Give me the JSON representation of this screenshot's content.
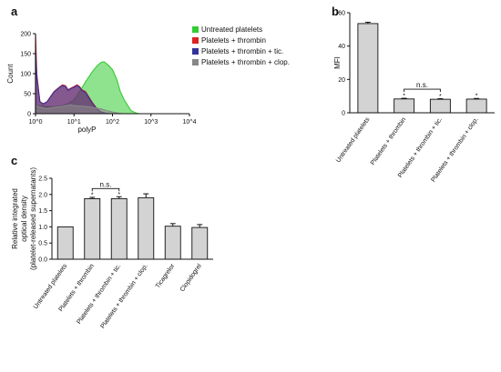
{
  "chart_data": [
    {
      "panel": "a",
      "type": "area",
      "xlabel": "polyP",
      "ylabel": "Count",
      "xscale": "log",
      "xlim": [
        1,
        10000
      ],
      "ylim": [
        0,
        200
      ],
      "xticks": [
        "10^0",
        "10^1",
        "10^2",
        "10^3",
        "10^4"
      ],
      "yticks": [
        "0",
        "50",
        "100",
        "150",
        "200"
      ],
      "legend_position": "right",
      "series": [
        {
          "name": "Untreated platelets",
          "color": "#33cc33",
          "x": [
            1,
            1.5,
            2,
            3,
            5,
            7,
            10,
            15,
            20,
            30,
            40,
            50,
            60,
            70,
            80,
            100,
            130,
            160,
            200,
            300,
            400,
            500
          ],
          "y": [
            20,
            20,
            18,
            18,
            20,
            25,
            35,
            60,
            80,
            105,
            120,
            128,
            130,
            125,
            120,
            110,
            85,
            55,
            35,
            8,
            2,
            0
          ]
        },
        {
          "name": "Platelets + thrombin",
          "color": "#dd2222",
          "x": [
            1,
            1.08,
            1.3,
            1.6,
            2,
            3,
            4,
            5,
            6,
            7,
            8,
            10,
            12,
            14,
            16,
            20,
            25,
            30,
            40,
            50,
            70,
            100
          ],
          "y": [
            200,
            100,
            30,
            25,
            30,
            55,
            65,
            72,
            70,
            60,
            63,
            68,
            72,
            68,
            60,
            55,
            40,
            28,
            12,
            5,
            1,
            0
          ]
        },
        {
          "name": "Platelets + thrombin + tic.",
          "color": "#333399",
          "x": [
            1,
            1.08,
            1.3,
            1.6,
            2,
            3,
            4,
            5,
            6,
            7,
            8,
            10,
            12,
            14,
            16,
            20,
            25,
            30,
            40,
            50,
            70,
            100
          ],
          "y": [
            160,
            90,
            30,
            24,
            30,
            54,
            64,
            70,
            68,
            58,
            62,
            66,
            70,
            66,
            58,
            53,
            38,
            26,
            10,
            4,
            1,
            0
          ]
        },
        {
          "name": "Platelets + thrombin + clop.",
          "color": "#888888",
          "x": [
            1,
            1.5,
            2,
            3,
            5,
            8,
            10,
            20,
            30,
            50,
            70,
            100,
            150,
            200
          ],
          "y": [
            20,
            15,
            12,
            16,
            18,
            22,
            20,
            18,
            16,
            12,
            8,
            4,
            1,
            0
          ]
        }
      ]
    },
    {
      "panel": "b",
      "type": "bar",
      "ylabel": "MFI",
      "ylim": [
        0,
        60
      ],
      "yticks": [
        "0",
        "20",
        "40",
        "60"
      ],
      "categories": [
        "Untreated platelets",
        "Platelets + thrombin",
        "Platelets + thrombin + tic.",
        "Platelets + thrombin + clop."
      ],
      "values": [
        53.5,
        8.3,
        8.1,
        8.2
      ],
      "errors": [
        0.8,
        0.4,
        0.4,
        0.4
      ],
      "markers": [
        "",
        "*",
        "*",
        "*"
      ],
      "bracket_label": "n.s.",
      "bar_color": "#d3d3d3"
    },
    {
      "panel": "c",
      "type": "bar",
      "ylabel": [
        "Relative integrated",
        "optical density",
        "(platelet-released supernatants)"
      ],
      "ylim": [
        0,
        2.5
      ],
      "yticks": [
        "0.0",
        "0.5",
        "1.0",
        "1.5",
        "2.0",
        "2.5"
      ],
      "categories": [
        "Untreated platelets",
        "Platelets + thrombin",
        "Platelets + thrombin + tic.",
        "Platelets + thrombin + clop.",
        "Ticagrelor",
        "Clopidogrel"
      ],
      "values": [
        1.0,
        1.87,
        1.87,
        1.9,
        1.02,
        0.98
      ],
      "errors": [
        0.0,
        0.04,
        0.06,
        0.12,
        0.08,
        0.09
      ],
      "markers": [
        "",
        "*",
        "*",
        "",
        "",
        ""
      ],
      "bracket_label": "n.s.",
      "bar_color": "#d3d3d3"
    }
  ]
}
